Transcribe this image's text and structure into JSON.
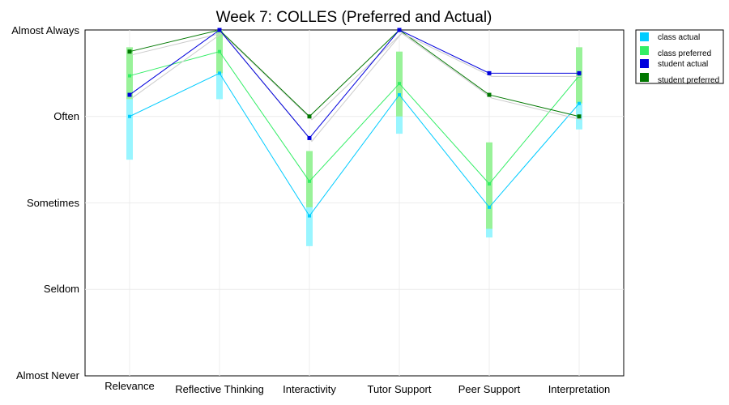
{
  "chart_data": {
    "type": "line",
    "title": "Week 7: COLLES (Preferred and Actual)",
    "xlabel": "",
    "ylabel": "",
    "categories": [
      "Relevance",
      "Reflective Thinking",
      "Interactivity",
      "Tutor Support",
      "Peer Support",
      "Interpretation"
    ],
    "y_tick_labels": [
      "Almost Never",
      "Seldom",
      "Sometimes",
      "Often",
      "Almost Always"
    ],
    "ylim": [
      1,
      5
    ],
    "grid": true,
    "legend_position": "top-right",
    "colors": {
      "class_actual": "#00ccff",
      "class_preferred": "#33ee66",
      "student_actual": "#0000dd",
      "student_preferred": "#007700",
      "class_actual_band": "#99f5ff",
      "class_preferred_band": "#99f299",
      "shadow": "#cccccc"
    },
    "series": [
      {
        "name": "class actual",
        "key": "class_actual",
        "values": [
          4.0,
          4.5,
          2.85,
          4.25,
          2.95,
          4.15
        ],
        "band_low": [
          3.5,
          4.2,
          2.5,
          3.8,
          2.6,
          3.85
        ],
        "band_high": [
          4.2,
          4.5,
          3.0,
          4.4,
          3.0,
          4.15
        ]
      },
      {
        "name": "class preferred",
        "key": "class_preferred",
        "values": [
          4.47,
          4.75,
          3.25,
          4.38,
          3.22,
          4.47
        ],
        "band_low": [
          4.2,
          4.5,
          2.95,
          4.0,
          2.7,
          4.15
        ],
        "band_high": [
          4.8,
          5.0,
          3.6,
          4.75,
          3.7,
          4.8
        ]
      },
      {
        "name": "student actual",
        "key": "student_actual",
        "values": [
          4.25,
          5.0,
          3.75,
          5.0,
          4.5,
          4.5
        ]
      },
      {
        "name": "student preferred",
        "key": "student_preferred",
        "values": [
          4.75,
          5.0,
          4.0,
          5.0,
          4.25,
          4.0
        ]
      }
    ]
  }
}
